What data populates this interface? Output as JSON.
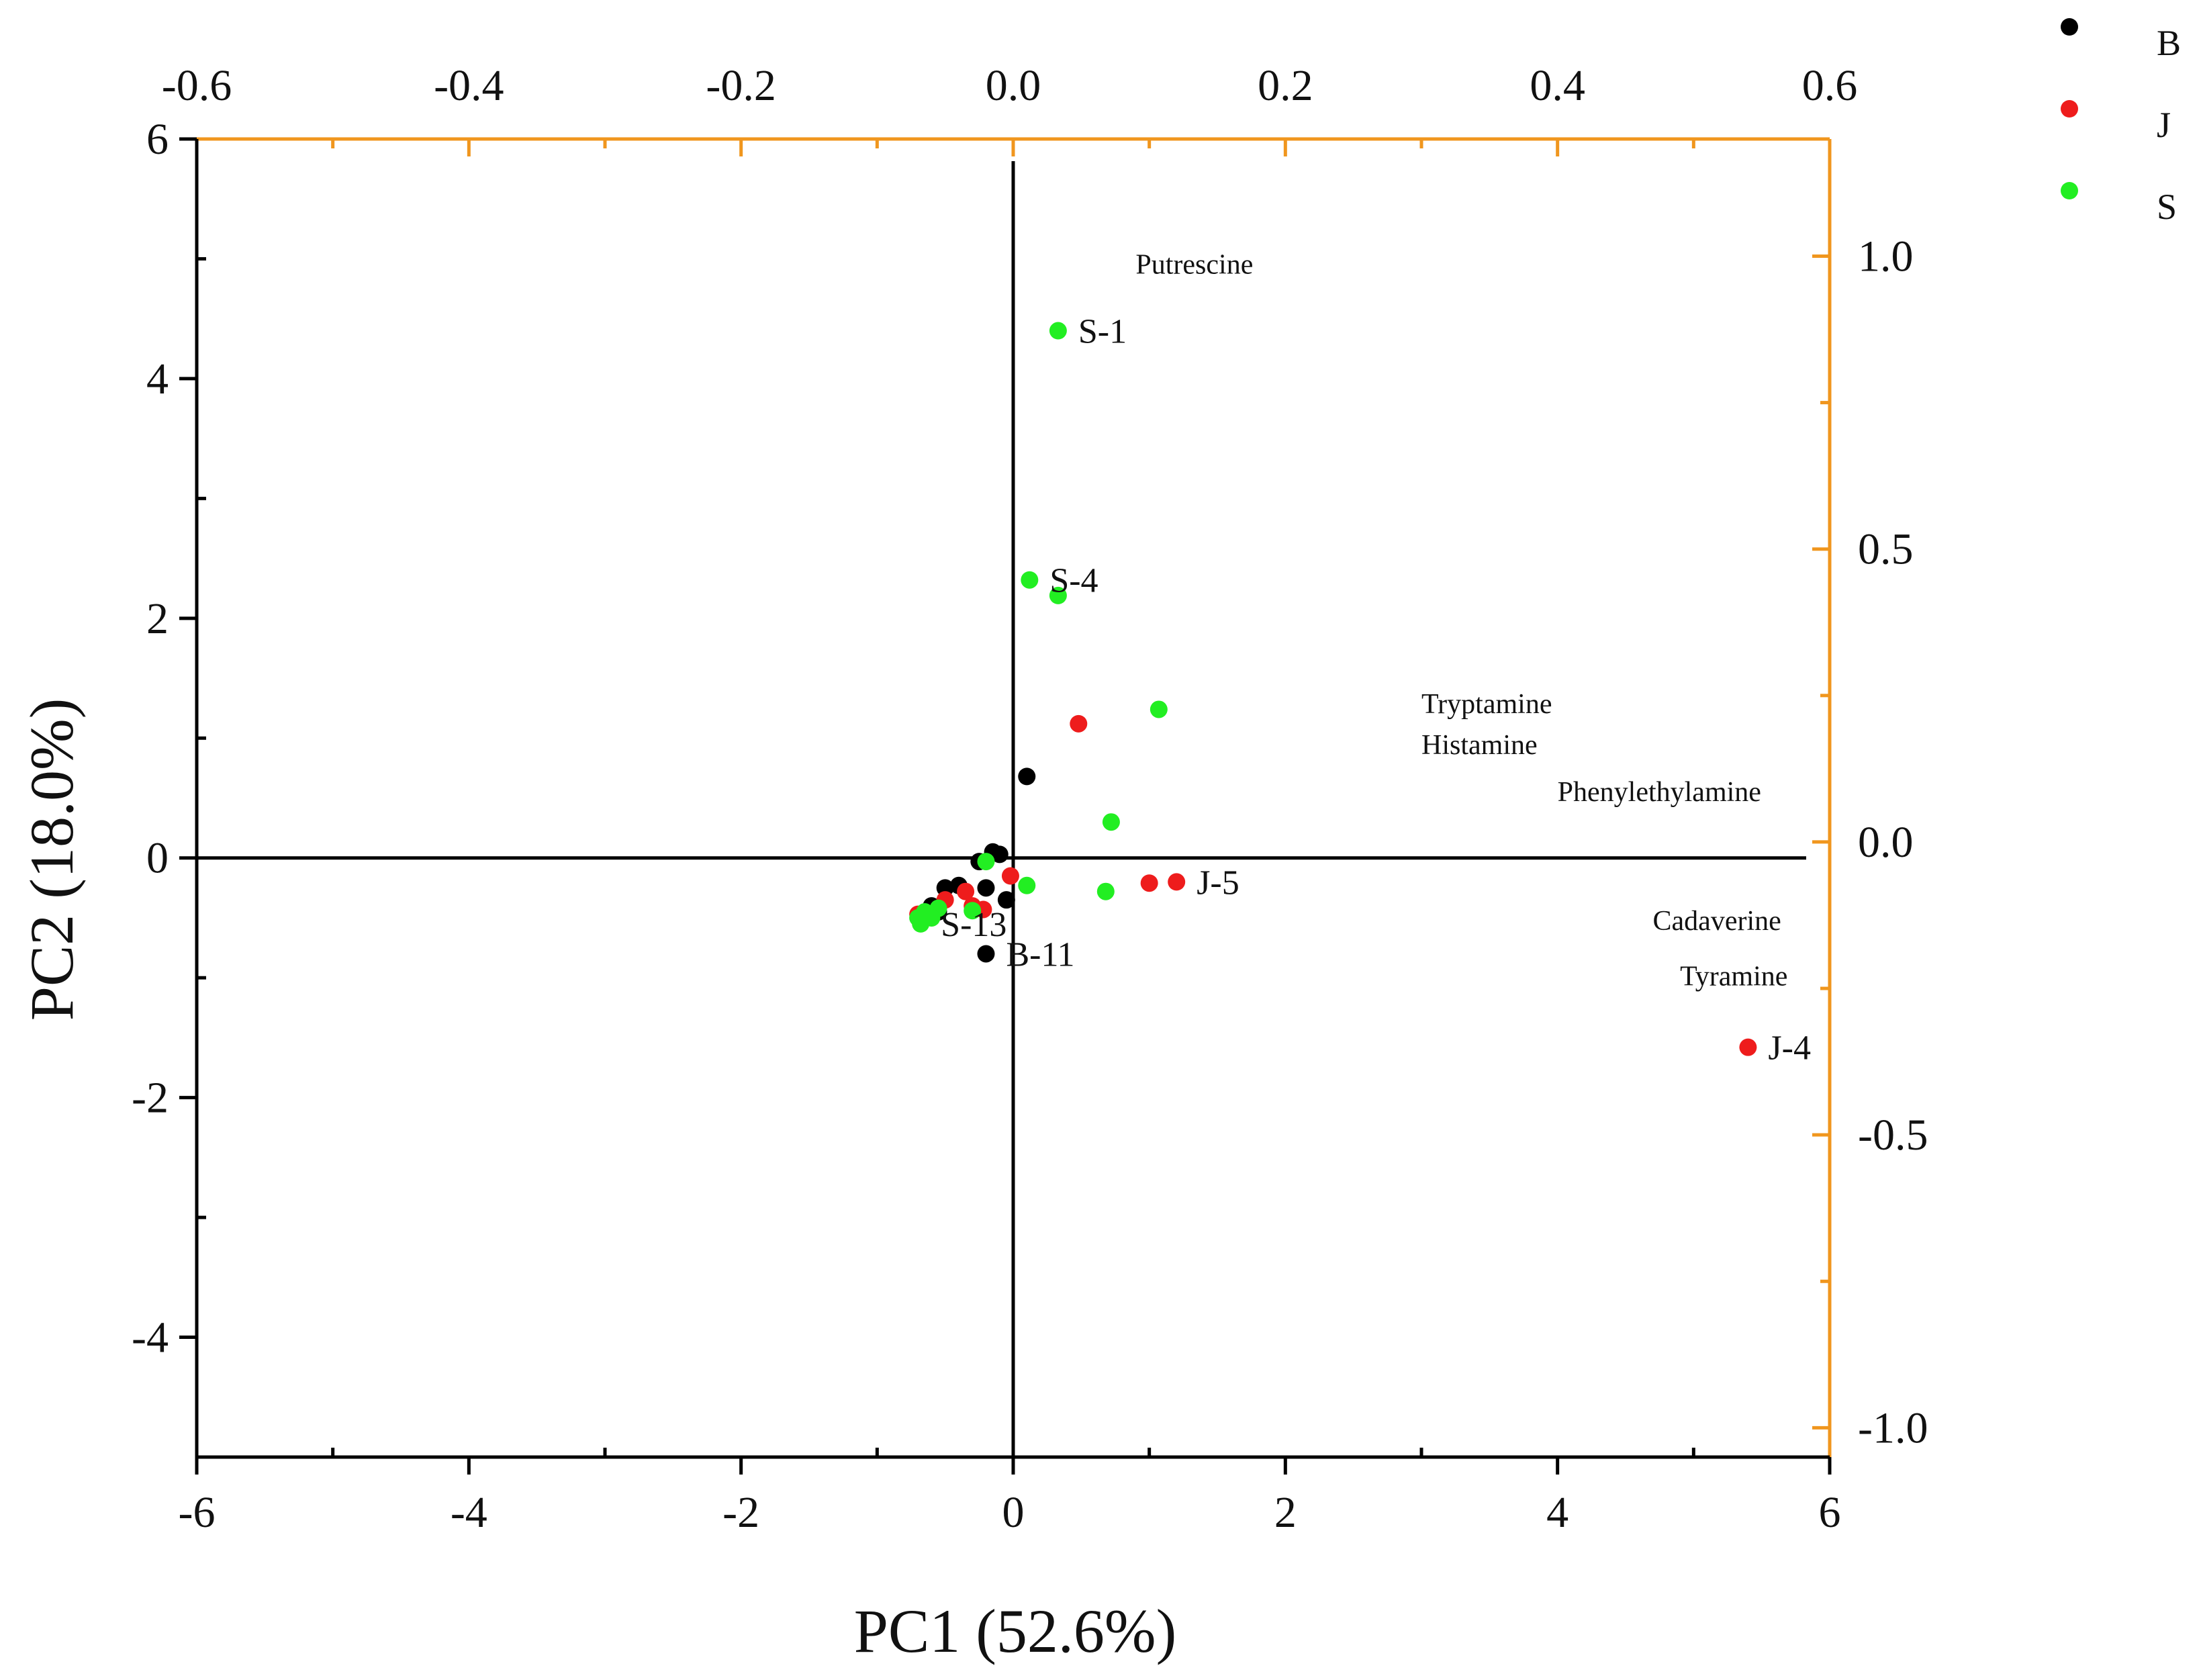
{
  "chart_data": {
    "type": "scatter",
    "title": "",
    "xlabel": "PC1 (52.6%)",
    "ylabel": "PC2 (18.0%)",
    "xlim": [
      -6,
      6
    ],
    "ylim": [
      -5,
      6
    ],
    "xticks": [
      -6,
      -4,
      -2,
      0,
      2,
      4,
      6
    ],
    "yticks": [
      -4,
      -2,
      0,
      2,
      4,
      6
    ],
    "x_tick_labels": [
      "-6",
      "-4",
      "-2",
      "0",
      "2",
      "4",
      "6"
    ],
    "y_tick_labels": [
      "-4",
      "-2",
      "0",
      "2",
      "4",
      "6"
    ],
    "grid": false,
    "legend": "outside-top-right",
    "loadings_axes": {
      "color": "#f0961e",
      "top_xlim": [
        -0.6,
        0.6
      ],
      "top_ticks": [
        -0.6,
        -0.4,
        -0.2,
        0.0,
        0.2,
        0.4,
        0.6
      ],
      "top_tick_labels": [
        "-0.6",
        "-0.4",
        "-0.2",
        "0.0",
        "0.2",
        "0.4",
        "0.6"
      ],
      "right_ylim": [
        -1.05,
        1.2
      ],
      "right_ticks": [
        -1.0,
        -0.5,
        0.0,
        0.5,
        1.0
      ],
      "right_tick_labels": [
        "-1.0",
        "-0.5",
        "0.0",
        "0.5",
        "1.0"
      ]
    },
    "series": [
      {
        "name": "B",
        "color": "#000000",
        "points": [
          [
            0.1,
            0.68
          ],
          [
            -0.15,
            0.05
          ],
          [
            -0.1,
            0.03
          ],
          [
            -0.25,
            -0.03
          ],
          [
            -0.5,
            -0.25
          ],
          [
            -0.4,
            -0.23
          ],
          [
            -0.2,
            -0.25
          ],
          [
            -0.05,
            -0.35
          ],
          [
            -0.6,
            -0.4
          ],
          [
            -0.55,
            -0.45
          ],
          [
            -0.2,
            -0.8
          ]
        ]
      },
      {
        "name": "J",
        "color": "#ee1c1c",
        "points": [
          [
            0.48,
            1.12
          ],
          [
            1.0,
            -0.21
          ],
          [
            1.2,
            -0.2
          ],
          [
            5.4,
            -1.58
          ],
          [
            -0.02,
            -0.15
          ],
          [
            -0.35,
            -0.28
          ],
          [
            -0.3,
            -0.4
          ],
          [
            -0.22,
            -0.43
          ],
          [
            -0.5,
            -0.35
          ],
          [
            -0.7,
            -0.47
          ]
        ]
      },
      {
        "name": "S",
        "color": "#22ee22",
        "points": [
          [
            0.33,
            4.4
          ],
          [
            0.12,
            2.32
          ],
          [
            0.33,
            2.19
          ],
          [
            1.07,
            1.24
          ],
          [
            0.72,
            0.3
          ],
          [
            0.68,
            -0.28
          ],
          [
            0.1,
            -0.23
          ],
          [
            -0.2,
            -0.03
          ],
          [
            -0.3,
            -0.44
          ],
          [
            -0.55,
            -0.42
          ],
          [
            -0.6,
            -0.5
          ],
          [
            -0.65,
            -0.45
          ],
          [
            -0.68,
            -0.55
          ],
          [
            -0.7,
            -0.5
          ]
        ]
      }
    ],
    "point_labels": [
      {
        "text": "S-1",
        "x": 0.33,
        "y": 4.4
      },
      {
        "text": "S-4",
        "x": 0.12,
        "y": 2.32
      },
      {
        "text": "J-5",
        "x": 1.2,
        "y": -0.2
      },
      {
        "text": "J-4",
        "x": 5.4,
        "y": -1.58
      },
      {
        "text": "S-13",
        "x": -0.68,
        "y": -0.55
      },
      {
        "text": "B-11",
        "x": -0.2,
        "y": -0.8
      }
    ],
    "variable_labels": [
      {
        "text": "Putrescine",
        "x": 0.09,
        "y": 0.97
      },
      {
        "text": "Tryptamine",
        "x": 0.3,
        "y": 0.22
      },
      {
        "text": "Histamine",
        "x": 0.3,
        "y": 0.15
      },
      {
        "text": "Phenylethylamine",
        "x": 0.4,
        "y": 0.07
      },
      {
        "text": "Cadaverine",
        "x": 0.47,
        "y": -0.15
      },
      {
        "text": "Tyramine",
        "x": 0.49,
        "y": -0.245
      }
    ]
  }
}
